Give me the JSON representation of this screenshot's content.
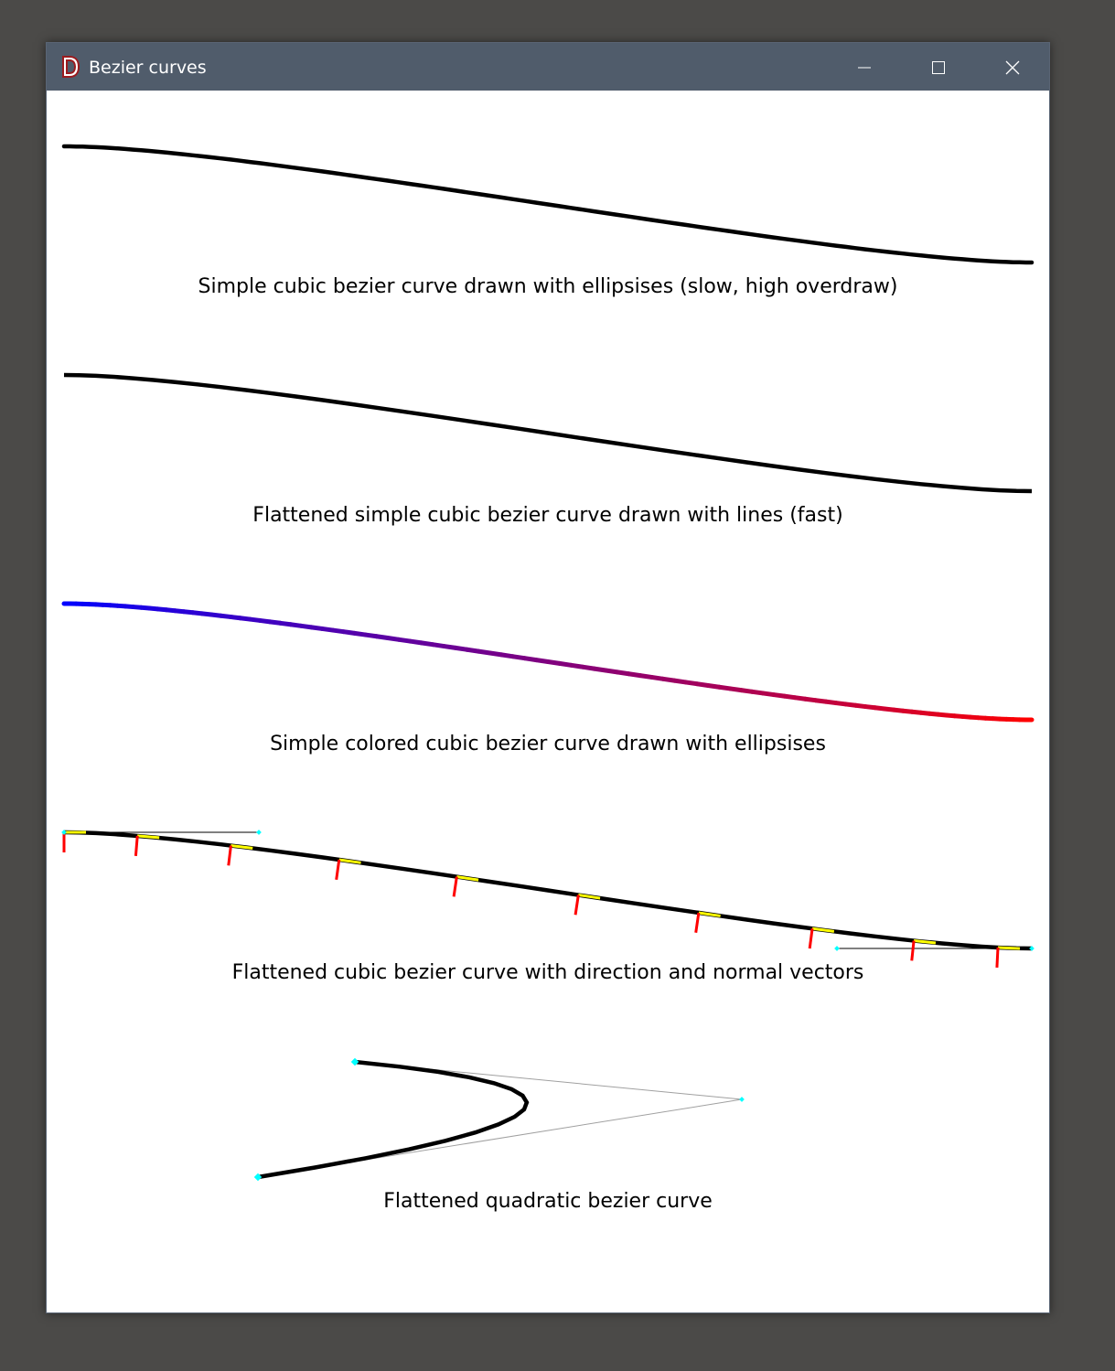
{
  "window": {
    "title": "Bezier curves",
    "icon": "d-letter-icon",
    "controls": [
      "minimize",
      "maximize",
      "close"
    ]
  },
  "colors": {
    "titlebar": "#505c6b",
    "curve": "#000000",
    "gradient_start": "#0000ff",
    "gradient_end": "#ff0000",
    "direction": "#ffff00",
    "normal": "#ff0000",
    "control_point": "#00ffff",
    "control_line": "#a0a0a0"
  },
  "labels": [
    "Simple cubic bezier curve drawn with ellipsises (slow, high overdraw)",
    "Flattened simple cubic bezier curve drawn with lines (fast)",
    "Simple colored cubic bezier curve drawn with ellipsises",
    "Flattened cubic bezier curve with direction and normal vectors",
    "Flattened quadratic bezier curve"
  ]
}
